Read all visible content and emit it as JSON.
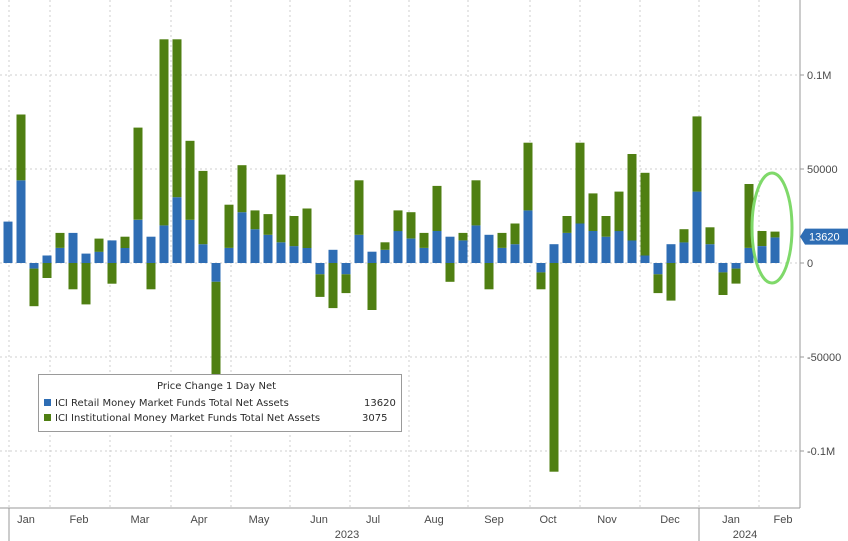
{
  "chart_data": {
    "type": "bar",
    "stacked": true,
    "legend": {
      "title": "Price Change 1 Day Net",
      "placement": "bottom-left",
      "entries": [
        {
          "label": "ICI Retail Money Market Funds Total Net Assets",
          "value": "13620",
          "color": "#2e6db4"
        },
        {
          "label": "ICI Institutional Money Market Funds Total Net Assets",
          "value": "3075",
          "color": "#4f7f12"
        }
      ]
    },
    "y_ticks": [
      "0.1M",
      "50000",
      "0",
      "-50000",
      "-0.1M"
    ],
    "ylim": [
      -125000,
      140000
    ],
    "last_value_label": "13620",
    "x_month_labels": [
      "Jan",
      "Feb",
      "Mar",
      "Apr",
      "May",
      "Jun",
      "Jul",
      "Aug",
      "Sep",
      "Oct",
      "Nov",
      "Dec",
      "Jan",
      "Feb"
    ],
    "x_year_labels": [
      "2023",
      "2024"
    ],
    "grid": true,
    "series": [
      {
        "name": "ICI Retail Money Market Funds Total Net Assets",
        "color": "#2e6db4",
        "values": [
          22000,
          44000,
          -3000,
          4000,
          8000,
          16000,
          5000,
          6000,
          12000,
          8000,
          23000,
          14000,
          20000,
          35000,
          23000,
          10000,
          -10000,
          8000,
          27000,
          18000,
          15000,
          11000,
          9000,
          8000,
          -6000,
          7000,
          -6000,
          15000,
          6000,
          7000,
          17000,
          13000,
          8000,
          17000,
          14000,
          12000,
          20000,
          15000,
          8000,
          10000,
          28000,
          -5000,
          10000,
          16000,
          21000,
          17000,
          14000,
          17000,
          12000,
          4000,
          -6000,
          10000,
          11000,
          38000,
          10000,
          -5000,
          -3000,
          8000,
          9000,
          13620
        ]
      },
      {
        "name": "ICI Institutional Money Market Funds Total Net Assets",
        "color": "#4f7f12",
        "values": [
          0,
          35000,
          -20000,
          -8000,
          8000,
          -14000,
          -22000,
          7000,
          -11000,
          6000,
          49000,
          -14000,
          99000,
          84000,
          42000,
          39000,
          -54000,
          23000,
          25000,
          10000,
          11000,
          36000,
          16000,
          21000,
          -12000,
          -24000,
          -10000,
          29000,
          -25000,
          4000,
          11000,
          14000,
          8000,
          24000,
          -10000,
          4000,
          24000,
          -14000,
          8000,
          11000,
          36000,
          -9000,
          -111000,
          9000,
          43000,
          20000,
          11000,
          21000,
          46000,
          44000,
          -10000,
          -20000,
          7000,
          40000,
          9000,
          -12000,
          -8000,
          34000,
          8000,
          3075
        ]
      }
    ]
  },
  "annotation": {
    "type": "circle",
    "color": "#7fd96a"
  }
}
